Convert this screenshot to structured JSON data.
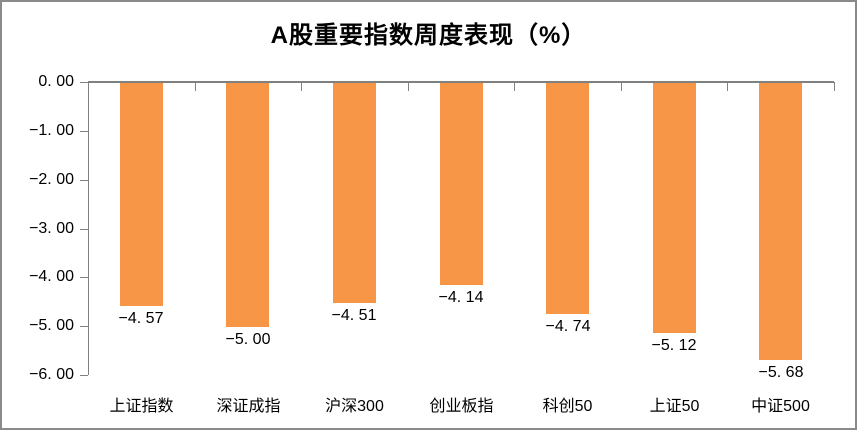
{
  "title": "A股重要指数周度表现（%）",
  "chart_data": {
    "type": "bar",
    "title": "A股重要指数周度表现（%）",
    "categories": [
      "上证指数",
      "深证成指",
      "沪深300",
      "创业板指",
      "科创50",
      "上证50",
      "中证500"
    ],
    "values": [
      -4.57,
      -5.0,
      -4.51,
      -4.14,
      -4.74,
      -5.12,
      -5.68
    ],
    "value_labels": [
      "−4. 57",
      "−5. 00",
      "−4. 51",
      "−4. 14",
      "−4. 74",
      "−5. 12",
      "−5. 68"
    ],
    "y_ticks": [
      0,
      -1,
      -2,
      -3,
      -4,
      -5,
      -6
    ],
    "y_tick_labels": [
      "0. 00",
      "−1. 00",
      "−2. 00",
      "−3. 00",
      "−4. 00",
      "−5. 00",
      "−6. 00"
    ],
    "ylim": [
      -6,
      0
    ],
    "xlabel": "",
    "ylabel": "",
    "grid": false,
    "legend": false,
    "bar_color": "#F79646",
    "axis_color": "#808080",
    "border_color": "#8A8A8A",
    "text_color": "#000000"
  }
}
